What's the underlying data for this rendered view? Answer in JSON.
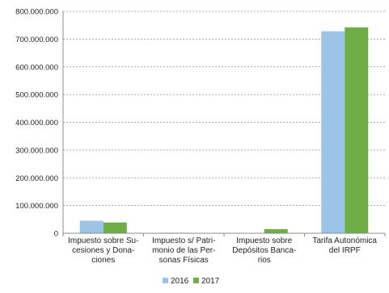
{
  "chart_data": {
    "type": "bar",
    "title": "",
    "xlabel": "",
    "ylabel": "",
    "categories": [
      [
        "Impuesto sobre Su-",
        "cesiones y Dona-",
        "ciones"
      ],
      [
        "Impuesto s/ Patri-",
        "monio de las Per-",
        "sonas Físicas"
      ],
      [
        "Impuesto sobre",
        "Depósitos Banca-",
        "rios"
      ],
      [
        "Tarifa Autonómica",
        "del IRPF"
      ]
    ],
    "series": [
      {
        "name": "2016",
        "color": "#9dc3e6",
        "values": [
          45000000,
          2000000,
          0,
          728000000
        ]
      },
      {
        "name": "2017",
        "color": "#70ad47",
        "values": [
          39000000,
          1500000,
          15000000,
          742000000
        ]
      }
    ],
    "ylim": [
      0,
      800000000
    ],
    "yticks": [
      0,
      100000000,
      200000000,
      300000000,
      400000000,
      500000000,
      600000000,
      700000000,
      800000000
    ],
    "ytick_labels": [
      "0",
      "100.000.000",
      "200.000.000",
      "300.000.000",
      "400.000.000",
      "500.000.000",
      "600.000.000",
      "700.000.000",
      "800.000.000"
    ],
    "grid": true,
    "legend_position": "bottom"
  }
}
